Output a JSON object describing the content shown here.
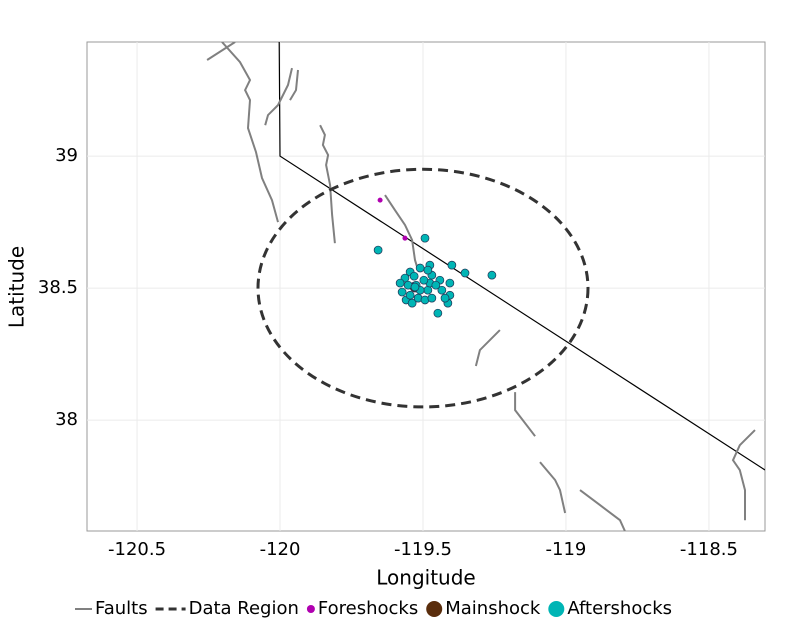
{
  "chart_data": {
    "type": "scatter",
    "x_label": "Longitude",
    "y_label": "Latitude",
    "xlim": [
      -120.675,
      -118.304
    ],
    "ylim": [
      37.58,
      39.432
    ],
    "xticks": [
      -120.5,
      -120,
      -119.5,
      -119,
      -118.5
    ],
    "yticks": [
      38,
      38.5,
      39
    ],
    "grid": true,
    "legend": "bottom",
    "boundary": {
      "color": "#000000",
      "x": [
        -120.003,
        -120,
        -118.304
      ],
      "y": [
        39.432,
        39,
        37.811
      ]
    },
    "series": [
      {
        "name": "Faults",
        "kind": "line",
        "color": "#808080",
        "x": [
          -120.255,
          -120.157,
          null,
          -120.203,
          -120.14,
          -120.105,
          -120.122,
          -120.105,
          -120.112,
          -120.084,
          -120.063,
          -120.028,
          -120.007,
          null,
          -120.052,
          -120.042,
          -120.007,
          -119.972,
          -119.958,
          null,
          -119.937,
          -119.944,
          -119.965,
          null,
          -119.86,
          -119.843,
          -119.85,
          -119.832,
          -119.839,
          -119.825,
          -119.818,
          -119.808,
          null,
          -119.633,
          -119.598,
          -119.563,
          -119.538,
          -119.528,
          -119.517,
          null,
          -119.231,
          -119.301,
          -119.315,
          null,
          -119.178,
          -119.178,
          -119.108,
          null,
          -119.091,
          -119.038,
          -119.021,
          -119.003,
          null,
          -118.951,
          -118.881,
          -118.811,
          -118.794,
          null,
          -118.339,
          -118.392,
          -118.416,
          -118.392,
          -118.374,
          -118.374
        ],
        "y": [
          39.364,
          39.432,
          null,
          39.432,
          39.356,
          39.288,
          39.25,
          39.212,
          39.106,
          39.015,
          38.917,
          38.833,
          38.75,
          null,
          39.117,
          39.155,
          39.193,
          39.269,
          39.333,
          null,
          39.326,
          39.25,
          39.212,
          null,
          39.117,
          39.08,
          39.042,
          39.004,
          38.966,
          38.89,
          38.777,
          38.67,
          null,
          38.852,
          38.795,
          38.739,
          38.682,
          38.606,
          38.568,
          null,
          38.341,
          38.265,
          38.205,
          null,
          38.106,
          38.038,
          37.939,
          null,
          37.841,
          37.773,
          37.735,
          37.648,
          null,
          37.735,
          37.678,
          37.621,
          37.58,
          null,
          37.962,
          37.905,
          37.848,
          37.811,
          37.735,
          37.621
        ]
      },
      {
        "name": "Data Region",
        "kind": "ellipse",
        "color": "#333333",
        "center_x": -119.5,
        "center_y": 38.5,
        "radius_x": 0.577,
        "radius_y": 0.45
      },
      {
        "name": "Foreshocks",
        "kind": "points",
        "color": "#b000b0",
        "x": [
          -119.65,
          -119.563
        ],
        "y": [
          38.833,
          38.689
        ]
      },
      {
        "name": "Mainshock",
        "kind": "points",
        "color": "#5a2d0c",
        "x": [
          -119.528
        ],
        "y": [
          38.504
        ]
      },
      {
        "name": "Aftershocks",
        "kind": "points",
        "color": "#00b5b5",
        "x": [
          -119.657,
          -119.493,
          -119.399,
          -119.259,
          -119.353,
          -119.448,
          -119.476,
          -119.406,
          -119.406,
          -119.413,
          -119.441,
          -119.434,
          -119.423,
          -119.469,
          -119.483,
          -119.51,
          -119.545,
          -119.563,
          -119.58,
          -119.573,
          -119.559,
          -119.538,
          -119.517,
          -119.493,
          -119.483,
          -119.476,
          -119.455,
          -119.524,
          -119.531,
          -119.552,
          -119.51,
          -119.497,
          -119.545,
          -119.469,
          -119.528
        ],
        "y": [
          38.644,
          38.689,
          38.587,
          38.549,
          38.557,
          38.405,
          38.587,
          38.519,
          38.473,
          38.443,
          38.53,
          38.492,
          38.462,
          38.549,
          38.568,
          38.576,
          38.561,
          38.538,
          38.519,
          38.485,
          38.455,
          38.443,
          38.462,
          38.455,
          38.492,
          38.519,
          38.511,
          38.511,
          38.545,
          38.511,
          38.492,
          38.53,
          38.473,
          38.462,
          38.504
        ]
      }
    ]
  }
}
